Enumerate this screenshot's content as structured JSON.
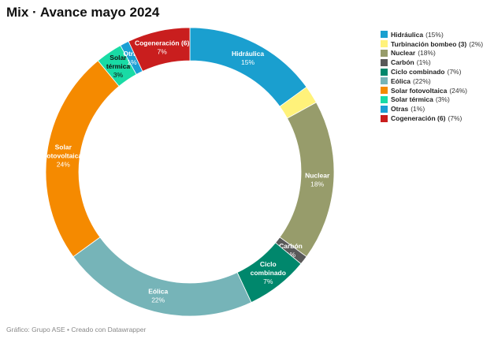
{
  "title": "Mix · Avance mayo 2024",
  "footer": "Gráfico: Grupo ASE • Creado con Datawrapper",
  "chart_data": {
    "type": "pie",
    "donut": true,
    "title": "Mix · Avance mayo 2024",
    "legend_position": "right",
    "slices": [
      {
        "label": "Hidráulica",
        "legend_label": "Hidráulica",
        "value": 15,
        "value_text": "15%",
        "color": "#1a9fcf",
        "label_color": "#ffffff"
      },
      {
        "label": "Turbinación bombeo (3)",
        "legend_label": "Turbinación bombeo (3)",
        "value": 2,
        "value_text": "2%",
        "color": "#fff27a",
        "label_color": null
      },
      {
        "label": "Nuclear",
        "legend_label": "Nuclear",
        "value": 18,
        "value_text": "18%",
        "color": "#979c6b",
        "label_color": "#ffffff"
      },
      {
        "label": "Carbón",
        "legend_label": "Carbón",
        "value": 1,
        "value_text": "1%",
        "color": "#595959",
        "label_color": "#ffffff"
      },
      {
        "label": "Ciclo combinado",
        "legend_label": "Ciclo combinado ",
        "value": 7,
        "value_text": "7%",
        "color": "#00876c",
        "label_color": "#ffffff"
      },
      {
        "label": "Eólica",
        "legend_label": "Eólica",
        "value": 22,
        "value_text": "22%",
        "color": "#76b4b8",
        "label_color": "#ffffff"
      },
      {
        "label": "Solar fotovoltaica",
        "legend_label": "Solar fotovoltaica",
        "value": 24,
        "value_text": "24%",
        "color": "#f58a00",
        "label_color": "#ffffff"
      },
      {
        "label": "Solar térmica",
        "legend_label": "Solar térmica",
        "value": 3,
        "value_text": "3%",
        "color": "#19dba5",
        "label_color": "#111111"
      },
      {
        "label": "Otras",
        "legend_label": "Otras",
        "value": 1,
        "value_text": "1%",
        "color": "#1b9fd4",
        "label_color": "#ffffff"
      },
      {
        "label": "Cogeneración (6)",
        "legend_label": "Cogeneración (6)",
        "value": 7,
        "value_text": "7%",
        "color": "#c91e1e",
        "label_color": "#ffffff"
      }
    ]
  }
}
